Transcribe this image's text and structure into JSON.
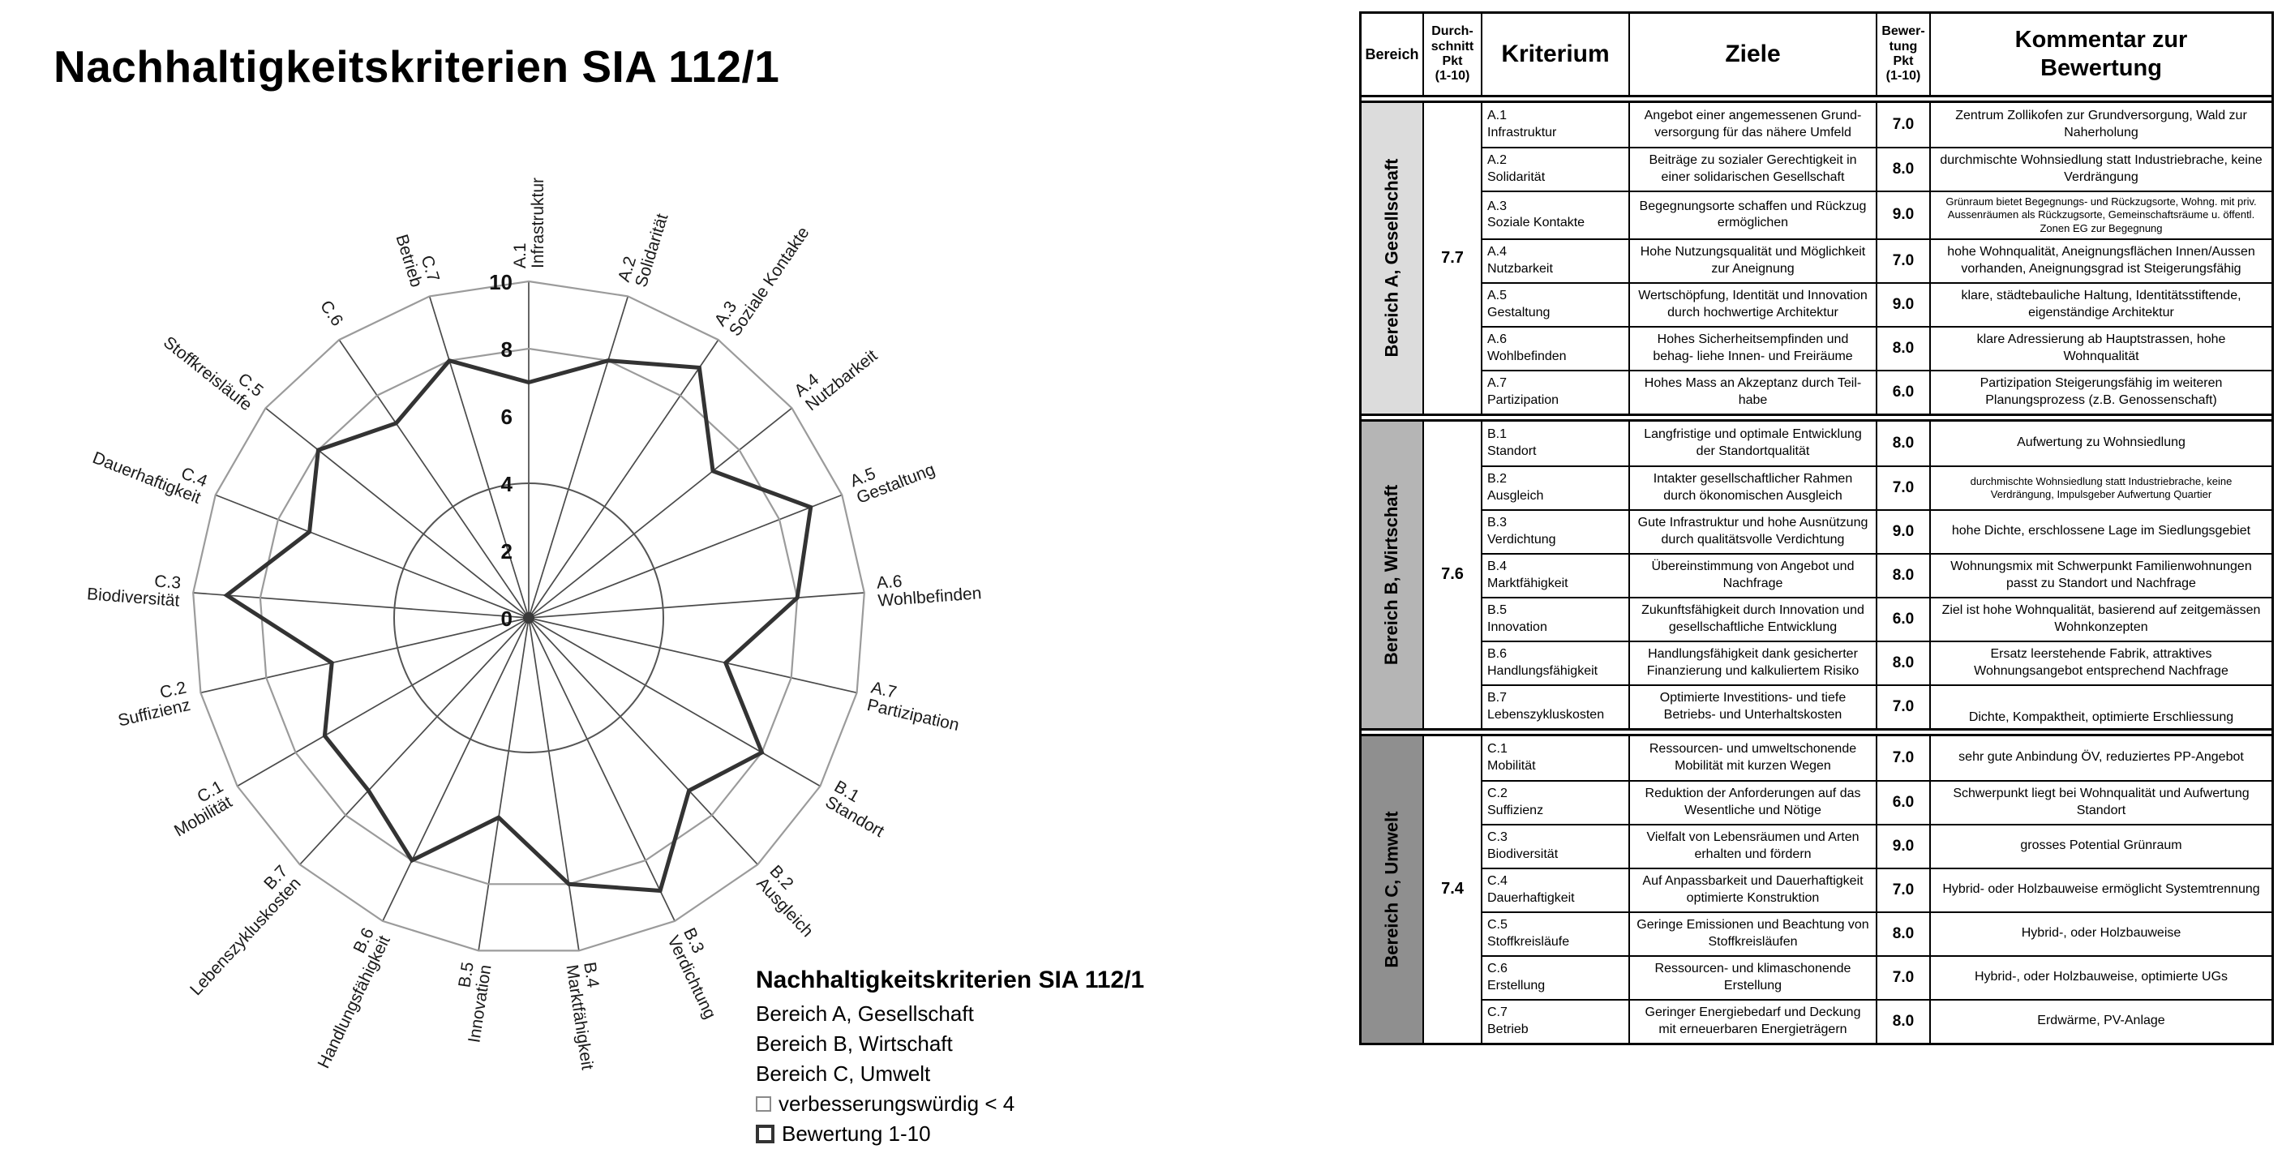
{
  "page_title": "Nachhaltigkeitskriterien SIA 112/1",
  "chart_data": {
    "type": "radar",
    "title": "Nachhaltigkeitskriterien SIA 112/1",
    "axis_ticks": [
      0,
      2,
      4,
      6,
      8,
      10
    ],
    "axis_range": [
      0,
      10
    ],
    "threshold_ring": 4,
    "grid_rings": [
      8,
      10
    ],
    "grid_color": "#9b9b9b",
    "spoke_color": "#4a4a4a",
    "data_color": "#333333",
    "categories": [
      {
        "code": "A.1",
        "label": "Infrastruktur"
      },
      {
        "code": "A.2",
        "label": "Solidarität"
      },
      {
        "code": "A.3",
        "label": "Soziale Kontakte"
      },
      {
        "code": "A.4",
        "label": "Nutzbarkeit"
      },
      {
        "code": "A.5",
        "label": "Gestaltung"
      },
      {
        "code": "A.6",
        "label": "Wohlbefinden"
      },
      {
        "code": "A.7",
        "label": "Partizipation"
      },
      {
        "code": "B.1",
        "label": "Standort"
      },
      {
        "code": "B.2",
        "label": "Ausgleich"
      },
      {
        "code": "B.3",
        "label": "Verdichtung"
      },
      {
        "code": "B.4",
        "label": "Marktfähigkeit"
      },
      {
        "code": "B.5",
        "label": "Innovation"
      },
      {
        "code": "B.6",
        "label": "Handlungsfähigkeit"
      },
      {
        "code": "B.7",
        "label": "Lebenszykluskosten"
      },
      {
        "code": "C.1",
        "label": "Mobilität"
      },
      {
        "code": "C.2",
        "label": "Suffizienz"
      },
      {
        "code": "C.3",
        "label": "Biodiversität"
      },
      {
        "code": "C.4",
        "label": "Dauerhaftigkeit"
      },
      {
        "code": "C.5",
        "label": "Stoffkreisläufe"
      },
      {
        "code": "C.6",
        "label": ""
      },
      {
        "code": "C.7",
        "label": "Betrieb"
      }
    ],
    "values": [
      7,
      8,
      9,
      7,
      9,
      8,
      6,
      8,
      7,
      9,
      8,
      6,
      8,
      7,
      7,
      6,
      9,
      7,
      8,
      7,
      8
    ],
    "legend": {
      "title": "Nachhaltigkeitskriterien SIA 112/1",
      "items": [
        "Bereich A, Gesellschaft",
        "Bereich B, Wirtschaft",
        "Bereich C, Umwelt"
      ],
      "threshold_label": "verbesserungswürdig < 4",
      "series_label": "Bewertung 1-10"
    }
  },
  "table": {
    "headers": {
      "bereich": "Bereich",
      "durchschnitt": "Durch-\nschnitt\nPkt\n(1-10)",
      "kriterium": "Kriterium",
      "ziele": "Ziele",
      "bewertung": "Bewer-\ntung\nPkt\n(1-10)",
      "kommentar": "Kommentar zur\nBewertung"
    },
    "sections": [
      {
        "name": "Bereich A, Gesellschaft",
        "avg": "7.7",
        "color": "#dcdcdc",
        "rows": [
          {
            "code": "A.1",
            "kriterium": "Infrastruktur",
            "ziele": "Angebot einer angemessenen Grund- versorgung für das nähere Umfeld",
            "bewertung": "7.0",
            "kommentar": "Zentrum Zollikofen zur Grundversorgung, Wald zur Naherholung"
          },
          {
            "code": "A.2",
            "kriterium": "Solidarität",
            "ziele": "Beiträge zu sozialer Gerechtigkeit in einer solidarischen Gesellschaft",
            "bewertung": "8.0",
            "kommentar": "durchmischte Wohnsiedlung statt Industriebrache, keine Verdrängung"
          },
          {
            "code": "A.3",
            "kriterium": "Soziale Kontakte",
            "ziele": "Begegnungsorte schaffen und Rückzug ermöglichen",
            "bewertung": "9.0",
            "kommentar": "Grünraum bietet Begegnungs- und Rückzugsorte, Wohng. mit priv. Aussenräumen als Rückzugsorte, Gemeinschaftsräume u. öffentl. Zonen EG zur Begegnung",
            "small": true
          },
          {
            "code": "A.4",
            "kriterium": "Nutzbarkeit",
            "ziele": "Hohe Nutzungsqualität und Möglichkeit zur Aneignung",
            "bewertung": "7.0",
            "kommentar": "hohe Wohnqualität, Aneignungsflächen Innen/Aussen vorhanden, Aneignungsgrad ist Steigerungsfähig"
          },
          {
            "code": "A.5",
            "kriterium": "Gestaltung",
            "ziele": "Wertschöpfung, Identität und Innovation durch hochwertige Architektur",
            "bewertung": "9.0",
            "kommentar": "klare, städtebauliche Haltung, Identitätsstiftende, eigenständige Architektur"
          },
          {
            "code": "A.6",
            "kriterium": "Wohlbefinden",
            "ziele": "Hohes Sicherheitsempfinden und behag- liehe Innen- und Freiräume",
            "bewertung": "8.0",
            "kommentar": "klare Adressierung ab Hauptstrassen, hohe Wohnqualität"
          },
          {
            "code": "A.7",
            "kriterium": "Partizipation",
            "ziele": "Hohes Mass an Akzeptanz durch Teil- habe",
            "bewertung": "6.0",
            "kommentar": "Partizipation Steigerungsfähig im weiteren Planungsprozess (z.B. Genossenschaft)"
          }
        ]
      },
      {
        "name": "Bereich B, Wirtschaft",
        "avg": "7.6",
        "color": "#b5b5b5",
        "rows": [
          {
            "code": "B.1",
            "kriterium": "Standort",
            "ziele": "Langfristige und optimale Entwicklung der Standortqualität",
            "bewertung": "8.0",
            "kommentar": "Aufwertung zu Wohnsiedlung"
          },
          {
            "code": "B.2",
            "kriterium": "Ausgleich",
            "ziele": "Intakter gesellschaftlicher Rahmen durch ökonomischen Ausgleich",
            "bewertung": "7.0",
            "kommentar": "durchmischte Wohnsiedlung statt Industriebrache, keine Verdrängung, Impulsgeber Aufwertung Quartier",
            "small": true
          },
          {
            "code": "B.3",
            "kriterium": "Verdichtung",
            "ziele": "Gute Infrastruktur und hohe Ausnützung durch qualitätsvolle Verdichtung",
            "bewertung": "9.0",
            "kommentar": "hohe Dichte, erschlossene Lage im Siedlungsgebiet"
          },
          {
            "code": "B.4",
            "kriterium": "Marktfähigkeit",
            "ziele": "Übereinstimmung von Angebot und Nachfrage",
            "bewertung": "8.0",
            "kommentar": "Wohnungsmix mit Schwerpunkt Familienwohnungen passt zu Standort und Nachfrage"
          },
          {
            "code": "B.5",
            "kriterium": "Innovation",
            "ziele": "Zukunftsfähigkeit durch Innovation und gesellschaftliche Entwicklung",
            "bewertung": "6.0",
            "kommentar": "Ziel ist hohe Wohnqualität, basierend auf zeitgemässen Wohnkonzepten"
          },
          {
            "code": "B.6",
            "kriterium": "Handlungsfähigkeit",
            "ziele": "Handlungsfähigkeit dank gesicherter Finanzierung und kalkuliertem Risiko",
            "bewertung": "8.0",
            "kommentar": "Ersatz leerstehende Fabrik, attraktives Wohnungsangebot entsprechend Nachfrage"
          },
          {
            "code": "B.7",
            "kriterium": "Lebenszykluskosten",
            "ziele": "Optimierte Investitions- und tiefe Betriebs- und Unterhaltskosten",
            "bewertung": "7.0",
            "kommentar": "Dichte, Kompaktheit, optimierte Erschliessung",
            "bottom": true
          }
        ]
      },
      {
        "name": "Bereich C, Umwelt",
        "avg": "7.4",
        "color": "#8f8f8f",
        "rows": [
          {
            "code": "C.1",
            "kriterium": "Mobilität",
            "ziele": "Ressourcen- und umweltschonende Mobilität mit kurzen Wegen",
            "bewertung": "7.0",
            "kommentar": "sehr gute Anbindung ÖV, reduziertes PP-Angebot"
          },
          {
            "code": "C.2",
            "kriterium": "Suffizienz",
            "ziele": "Reduktion der Anforderungen auf das Wesentliche und Nötige",
            "bewertung": "6.0",
            "kommentar": "Schwerpunkt liegt bei Wohnqualität und Aufwertung Standort"
          },
          {
            "code": "C.3",
            "kriterium": "Biodiversität",
            "ziele": "Vielfalt von Lebensräumen und Arten erhalten und fördern",
            "bewertung": "9.0",
            "kommentar": "grosses Potential Grünraum"
          },
          {
            "code": "C.4",
            "kriterium": "Dauerhaftigkeit",
            "ziele": "Auf Anpassbarkeit und Dauerhaftigkeit optimierte Konstruktion",
            "bewertung": "7.0",
            "kommentar": "Hybrid- oder Holzbauweise ermöglicht Systemtrennung"
          },
          {
            "code": "C.5",
            "kriterium": "Stoffkreisläufe",
            "ziele": "Geringe Emissionen und Beachtung von Stoffkreisläufen",
            "bewertung": "8.0",
            "kommentar": "Hybrid-, oder Holzbauweise"
          },
          {
            "code": "C.6",
            "kriterium": "Erstellung",
            "ziele": "Ressourcen- und klimaschonende Erstellung",
            "bewertung": "7.0",
            "kommentar": "Hybrid-, oder Holzbauweise, optimierte UGs"
          },
          {
            "code": "C.7",
            "kriterium": "Betrieb",
            "ziele": "Geringer Energiebedarf und Deckung mit erneuerbaren Energieträgern",
            "bewertung": "8.0",
            "kommentar": "Erdwärme, PV-Anlage"
          }
        ]
      }
    ]
  }
}
